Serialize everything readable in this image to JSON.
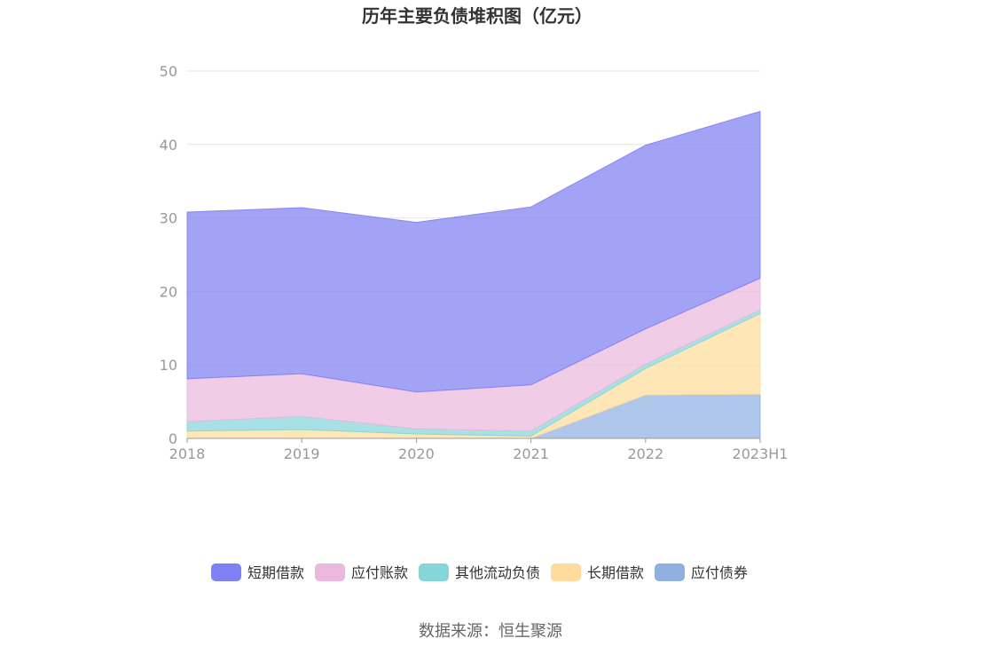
{
  "chart_data": {
    "type": "area",
    "stacked": true,
    "title": "历年主要负债堆积图（亿元）",
    "source": "数据来源：恒生聚源",
    "categories": [
      "2018",
      "2019",
      "2020",
      "2021",
      "2022",
      "2023H1"
    ],
    "y_ticks": [
      "0",
      "10",
      "20",
      "30",
      "40",
      "50"
    ],
    "ylim": [
      0,
      50
    ],
    "grid": true,
    "legend_position": "bottom",
    "series": [
      {
        "name": "应付债券",
        "color": "#8fb0e0",
        "values": [
          0,
          0,
          0,
          0,
          5.9,
          6.0
        ]
      },
      {
        "name": "长期借款",
        "color": "#ffdc9b",
        "values": [
          1.0,
          1.2,
          0.6,
          0.3,
          3.6,
          11.0
        ]
      },
      {
        "name": "其他流动负债",
        "color": "#86d6d9",
        "values": [
          1.3,
          1.8,
          0.7,
          0.7,
          0.6,
          0.5
        ]
      },
      {
        "name": "应付账款",
        "color": "#eab9dc",
        "values": [
          5.8,
          5.8,
          5.0,
          6.3,
          4.8,
          4.3
        ]
      },
      {
        "name": "短期借款",
        "color": "#7f80f3",
        "values": [
          22.7,
          22.6,
          23.1,
          24.2,
          25.0,
          22.7
        ]
      }
    ],
    "legend": [
      {
        "name": "短期借款",
        "color": "#7f80f3"
      },
      {
        "name": "应付账款",
        "color": "#eab9dc"
      },
      {
        "name": "其他流动负债",
        "color": "#86d6d9"
      },
      {
        "name": "长期借款",
        "color": "#ffdc9b"
      },
      {
        "name": "应付债券",
        "color": "#8fb0e0"
      }
    ]
  }
}
